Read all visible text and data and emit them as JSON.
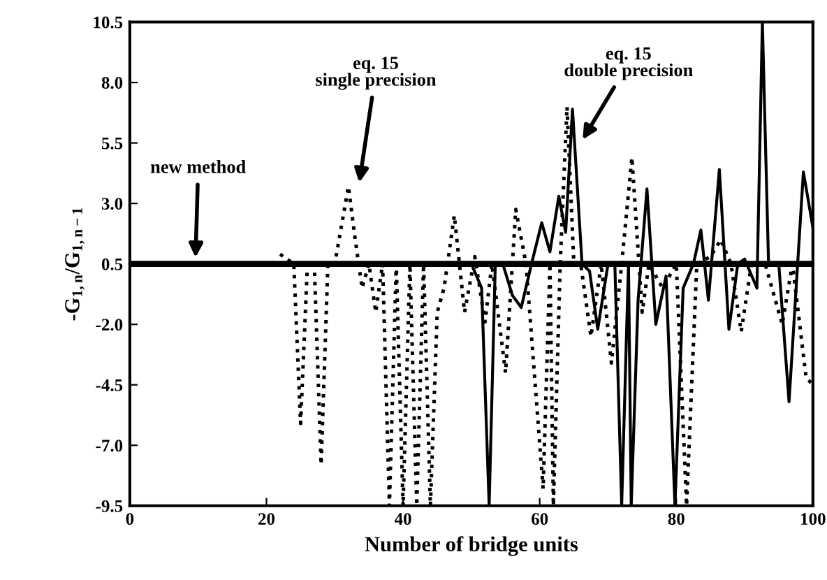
{
  "chart_data": {
    "type": "line",
    "xlabel": "Number of bridge units",
    "ylabel": "-G$_{1,n}$/G$_{1,n−1}$",
    "xlim": [
      0,
      100
    ],
    "ylim": [
      -9.5,
      10.5
    ],
    "xticks": [
      0,
      20,
      40,
      60,
      80,
      100
    ],
    "yticks": [
      {
        "value": 10.5,
        "label": "10.5"
      },
      {
        "value": 8,
        "label": "8.0"
      },
      {
        "value": 5.5,
        "label": "5.5"
      },
      {
        "value": 3,
        "label": "3.0"
      },
      {
        "value": 0.5,
        "label": "0.5"
      },
      {
        "value": -2,
        "label": "-2.0"
      },
      {
        "value": -4.5,
        "label": "-4.5"
      },
      {
        "value": -7,
        "label": "-7.0"
      },
      {
        "value": -9.5,
        "label": "-9.5"
      }
    ],
    "grid": false,
    "marker": "none",
    "series": [
      {
        "color": "#000000",
        "line_style": "dotted",
        "x": [
          22,
          24,
          25,
          26,
          27,
          28,
          29,
          30,
          32,
          33,
          34,
          35,
          36,
          37,
          38,
          39,
          40,
          41,
          42,
          43,
          44,
          45,
          46,
          47.5,
          49,
          50.5,
          52,
          53,
          55,
          56.5,
          58,
          60.5,
          61.5,
          62,
          63,
          64,
          65,
          66,
          67.5,
          69,
          70.5,
          72,
          73.5,
          75,
          76,
          78,
          80,
          81.5,
          83,
          85,
          86.5,
          88,
          89.5,
          91,
          93,
          95.5,
          97,
          99,
          100
        ],
        "values": [
          0.9,
          0.5,
          -6.1,
          0.5,
          0.5,
          -7.8,
          0.5,
          0.5,
          3.7,
          1.5,
          -0.5,
          0.5,
          -1.5,
          0.5,
          -9.5,
          0.5,
          -9.5,
          0.5,
          -9.5,
          0.5,
          -9.5,
          -1.5,
          -0.5,
          2.5,
          -1.5,
          0.8,
          -1.9,
          0.5,
          -4,
          2.75,
          0.5,
          -8.8,
          0.5,
          -9.5,
          0.5,
          7,
          0.5,
          0.5,
          -2.5,
          0.5,
          -3.6,
          0.5,
          4.9,
          -1.5,
          0.5,
          -0.5,
          0.5,
          -9.5,
          0.5,
          0.8,
          1.5,
          0.5,
          -2.3,
          0.5,
          0.5,
          -2,
          0.5,
          -4.2,
          -4.5
        ]
      },
      {
        "color": "#000000",
        "line_style": "solid",
        "x": [
          0,
          50,
          51.5,
          52.6,
          53.5,
          54.6,
          56,
          57.3,
          58.8,
          60.3,
          61.5,
          62.8,
          63.8,
          64.8,
          66.2,
          67.3,
          68.5,
          70,
          71,
          72,
          73,
          73.4,
          74.4,
          75.7,
          77,
          78.5,
          79.8,
          81,
          82.5,
          83.6,
          84.7,
          86.3,
          87.7,
          89,
          90,
          91.8,
          92.6,
          93.5,
          95,
          96.5,
          98.6,
          100
        ],
        "values": [
          0.5,
          0.5,
          -0.5,
          -9.5,
          0.5,
          0.5,
          -0.8,
          -1.3,
          0.5,
          2.2,
          1,
          3.3,
          1.8,
          6.9,
          0.5,
          0.2,
          -2.2,
          0.5,
          0.5,
          -9.5,
          0.5,
          -9.5,
          -1,
          3.6,
          -2,
          0,
          -9.5,
          -0.5,
          0.5,
          1.9,
          -1,
          4.4,
          -2.2,
          0.5,
          0.7,
          -0.5,
          10.5,
          0.5,
          0.5,
          -5.2,
          4.3,
          2
        ]
      },
      {
        "color": "#000000",
        "line_style": "solid",
        "x": [
          0,
          100
        ],
        "values": [
          0.5,
          0.5
        ]
      }
    ],
    "annotations": [
      "new method",
      "eq. 15\nsingle precision",
      "eq. 15\ndouble precision"
    ]
  }
}
